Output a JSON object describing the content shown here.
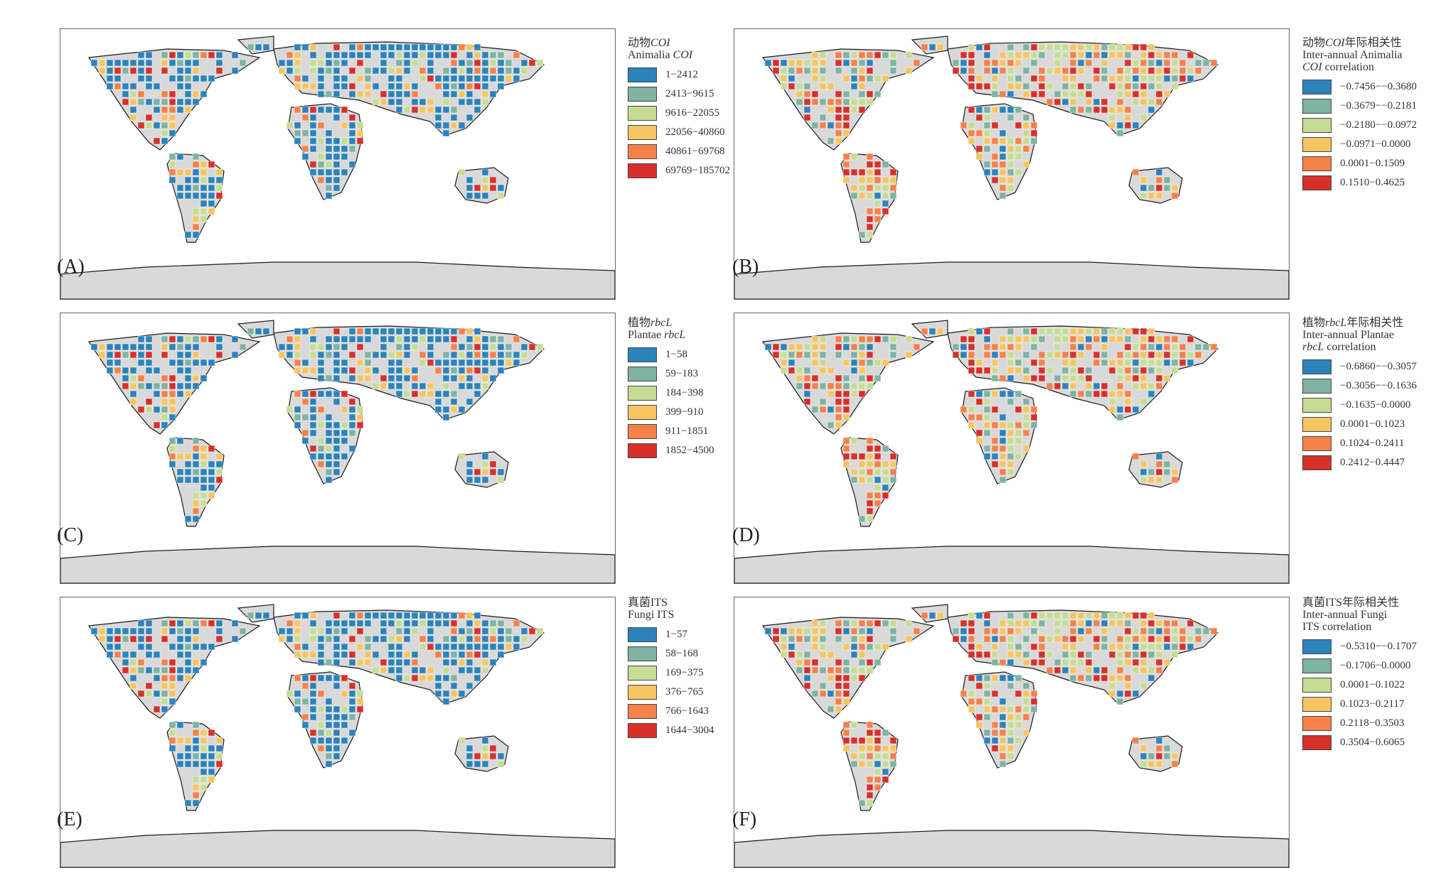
{
  "colors": {
    "class1": "#2b83ba",
    "class2": "#7fb3a2",
    "class3": "#c6dc93",
    "class4": "#f5c563",
    "class5": "#f4824a",
    "class6": "#d7302b",
    "land": "#d9d9d9",
    "coast": "#1a1a1a"
  },
  "panels": [
    {
      "label": "(A)",
      "legend": {
        "title_cn": "动物",
        "title_cn_it": "COI",
        "title_cn_rest": "",
        "title_en": "Animalia ",
        "title_en_it": "COI",
        "title_en3": "",
        "ranges": [
          "1−2412",
          "2413−9615",
          "9616−22055",
          "22056−40860",
          "40861−69768",
          "69769−185702"
        ]
      }
    },
    {
      "label": "(B)",
      "legend": {
        "title_cn": "动物",
        "title_cn_it": "COI",
        "title_cn_rest": "年际相关性",
        "title_en": "Inter-annual Animalia",
        "title_en_it": "",
        "title_en3": "COI correlation",
        "ranges": [
          "−0.7456−−0.3680",
          "−0.3679−−0.2181",
          "−0.2180−−0.0972",
          "−0.0971−0.0000",
          "0.0001−0.1509",
          "0.1510−0.4625"
        ]
      }
    },
    {
      "label": "(C)",
      "legend": {
        "title_cn": "植物",
        "title_cn_it": "rbcL",
        "title_cn_rest": "",
        "title_en": "Plantae ",
        "title_en_it": "rbcL",
        "title_en3": "",
        "ranges": [
          "1−58",
          "59−183",
          "184−398",
          "399−910",
          "911−1851",
          "1852−4500"
        ]
      }
    },
    {
      "label": "(D)",
      "legend": {
        "title_cn": "植物",
        "title_cn_it": "rbcL",
        "title_cn_rest": "年际相关性",
        "title_en": "Inter-annual Plantae",
        "title_en_it": "",
        "title_en3": "rbcL correlation",
        "ranges": [
          "−0.6860−−0.3057",
          "−0.3056−−0.1636",
          "−0.1635−0.0000",
          "0.0001−0.1023",
          "0.1024−0.2411",
          "0.2412−0.4447"
        ]
      }
    },
    {
      "label": "(E)",
      "legend": {
        "title_cn": "真菌ITS",
        "title_cn_it": "",
        "title_cn_rest": "",
        "title_en": "Fungi ITS",
        "title_en_it": "",
        "title_en3": "",
        "ranges": [
          "1−57",
          "58−168",
          "169−375",
          "376−765",
          "766−1643",
          "1644−3004"
        ]
      }
    },
    {
      "label": "(F)",
      "legend": {
        "title_cn": "真菌ITS年际相关性",
        "title_cn_it": "",
        "title_cn_rest": "",
        "title_en": "Inter-annual Fungi",
        "title_en_it": "",
        "title_en3": "ITS correlation",
        "ranges": [
          "−0.5310−−0.1707",
          "−0.1706−0.0000",
          "0.0001−0.1022",
          "0.1023−0.2117",
          "0.2118−0.3503",
          "0.3504−0.6065"
        ]
      }
    }
  ]
}
